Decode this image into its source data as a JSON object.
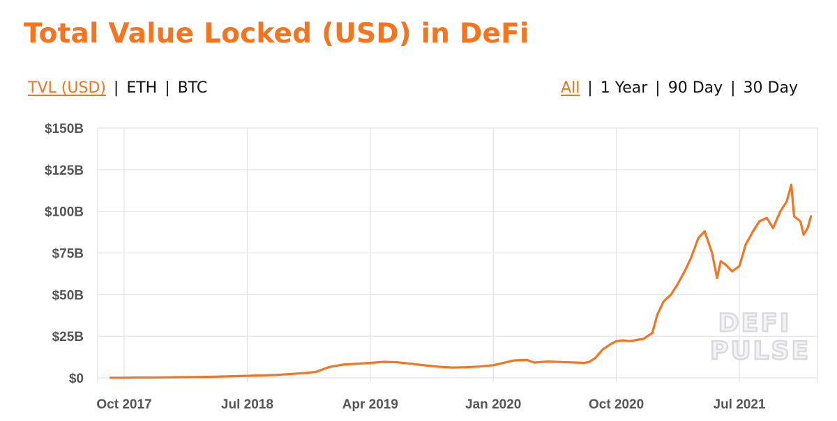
{
  "title": "Total Value Locked (USD) in DeFi",
  "unit_options": [
    {
      "label": "TVL (USD)",
      "active": true
    },
    {
      "label": "ETH",
      "active": false
    },
    {
      "label": "BTC",
      "active": false
    }
  ],
  "range_options": [
    {
      "label": "All",
      "active": true
    },
    {
      "label": "1 Year",
      "active": false
    },
    {
      "label": "90 Day",
      "active": false
    },
    {
      "label": "30 Day",
      "active": false
    }
  ],
  "separator": "|",
  "watermark": [
    "DEFI",
    "PULSE"
  ],
  "colors": {
    "accent": "#f7741c",
    "line": "#f7741c",
    "grid": "#e3e3e3",
    "tick_text": "#555555"
  },
  "chart_data": {
    "type": "line",
    "title": "Total Value Locked (USD) in DeFi",
    "xlabel": "",
    "ylabel": "",
    "x_ticks": [
      "Oct 2017",
      "Jul 2018",
      "Apr 2019",
      "Jan 2020",
      "Oct 2020",
      "Jul 2021"
    ],
    "y_ticks": [
      "$0",
      "$25B",
      "$50B",
      "$75B",
      "$100B",
      "$125B",
      "$150B"
    ],
    "ylim": [
      0,
      150
    ],
    "y_unit": "billion USD",
    "grid": true,
    "legend": "none",
    "series": [
      {
        "x": [
          "2017-09-01",
          "2017-10-01",
          "2017-11-01",
          "2017-12-01",
          "2018-01-01",
          "2018-02-01",
          "2018-03-01",
          "2018-04-01",
          "2018-05-01",
          "2018-06-01",
          "2018-07-01",
          "2018-08-01",
          "2018-09-01",
          "2018-10-01",
          "2018-11-01",
          "2018-12-01",
          "2019-01-01",
          "2019-02-01",
          "2019-03-01",
          "2019-04-01",
          "2019-05-01",
          "2019-06-01",
          "2019-07-01",
          "2019-08-01",
          "2019-09-01",
          "2019-10-01",
          "2019-11-01",
          "2019-12-01",
          "2020-01-01",
          "2020-02-01",
          "2020-02-15",
          "2020-03-15",
          "2020-04-01",
          "2020-05-01",
          "2020-06-01",
          "2020-07-01",
          "2020-07-20",
          "2020-08-01",
          "2020-08-15",
          "2020-09-01",
          "2020-09-20",
          "2020-10-01",
          "2020-10-15",
          "2020-11-01",
          "2020-11-20",
          "2020-12-01",
          "2020-12-20",
          "2021-01-01",
          "2021-01-15",
          "2021-02-01",
          "2021-02-15",
          "2021-03-01",
          "2021-03-15",
          "2021-04-01",
          "2021-04-15",
          "2021-05-01",
          "2021-05-12",
          "2021-05-20",
          "2021-06-01",
          "2021-06-15",
          "2021-07-01",
          "2021-07-15",
          "2021-08-01",
          "2021-08-15",
          "2021-09-01",
          "2021-09-15",
          "2021-10-01",
          "2021-10-15",
          "2021-10-25",
          "2021-11-01",
          "2021-11-15",
          "2021-11-22",
          "2021-12-01",
          "2021-12-08"
        ],
        "values": [
          0.1,
          0.1,
          0.2,
          0.2,
          0.3,
          0.4,
          0.5,
          0.6,
          0.8,
          1.0,
          1.2,
          1.5,
          1.7,
          2.2,
          2.8,
          3.5,
          6.5,
          8.0,
          8.5,
          9.0,
          9.6,
          9.3,
          8.5,
          7.5,
          6.7,
          6.2,
          6.4,
          6.8,
          7.6,
          9.5,
          10.4,
          10.8,
          9.2,
          9.8,
          9.5,
          9.2,
          9.0,
          9.5,
          12.0,
          17.0,
          20.5,
          22.0,
          22.5,
          22.0,
          23.0,
          23.5,
          27.0,
          38.0,
          46.0,
          50.0,
          56.0,
          64.0,
          72.0,
          84.0,
          88.0,
          75.0,
          60.0,
          70.0,
          68.0,
          64.0,
          67.0,
          80.0,
          88.0,
          94.0,
          96.0,
          90.0,
          100.0,
          106.0,
          116.0,
          97.0,
          94.0,
          86.0,
          90.0,
          97.0
        ]
      }
    ]
  }
}
